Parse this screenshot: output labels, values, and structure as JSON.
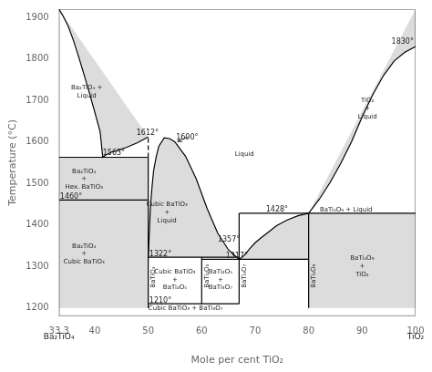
{
  "chart_data": {
    "type": "line",
    "xlabel": "Mole per cent TiO₂",
    "ylabel": "Temperature (°C)",
    "xlim": [
      33.3,
      100
    ],
    "ylim": [
      1180,
      1920
    ],
    "xticks": [
      33.3,
      40,
      50,
      60,
      70,
      80,
      90,
      100
    ],
    "yticks": [
      1200,
      1300,
      1400,
      1500,
      1600,
      1700,
      1800,
      1900
    ],
    "grid": false,
    "series": [
      {
        "type": "area",
        "color": "#c0c0c0",
        "x": [
          33.3,
          33.3,
          34,
          35,
          36,
          37,
          38,
          39,
          40,
          41,
          41.5,
          42,
          43,
          44,
          46,
          48,
          50,
          33.3
        ],
        "values": [
          1920,
          1920,
          1905,
          1880,
          1845,
          1805,
          1762,
          1718,
          1672,
          1625,
          1563,
          1568,
          1575,
          1578,
          1587,
          1598,
          1612,
          1920
        ]
      },
      {
        "type": "area",
        "color": "#c0c0c0",
        "x": [
          50,
          50.2,
          50.4,
          50.7,
          51,
          51.5,
          52,
          53,
          54,
          55,
          57,
          59,
          61,
          63,
          65,
          67,
          67,
          50
        ],
        "values": [
          1322,
          1380,
          1440,
          1490,
          1530,
          1565,
          1590,
          1610,
          1608,
          1600,
          1565,
          1510,
          1440,
          1380,
          1340,
          1317,
          1322,
          1322
        ]
      },
      {
        "type": "area",
        "color": "#c0c0c0",
        "x": [
          67,
          68,
          69,
          70,
          71,
          72,
          74,
          76,
          78,
          80,
          80,
          67
        ],
        "values": [
          1317,
          1327,
          1343,
          1357,
          1368,
          1378,
          1398,
          1412,
          1422,
          1428,
          1317,
          1317
        ]
      },
      {
        "type": "area",
        "color": "#c0c0c0",
        "x": [
          80,
          82,
          84,
          86,
          88,
          90,
          92,
          94,
          96,
          98,
          100,
          100
        ],
        "values": [
          1428,
          1462,
          1502,
          1548,
          1600,
          1660,
          1714,
          1760,
          1795,
          1816,
          1830,
          1920
        ]
      },
      {
        "type": "area",
        "color": "#c0c0c0",
        "x": [
          33.3,
          50,
          50,
          33.3
        ],
        "values": [
          1460,
          1460,
          1563,
          1563
        ]
      },
      {
        "type": "area",
        "color": "#c0c0c0",
        "x": [
          33.3,
          50,
          50,
          33.3
        ],
        "values": [
          1200,
          1200,
          1460,
          1460
        ]
      },
      {
        "type": "area",
        "color": "#c0c0c0",
        "x": [
          80,
          100,
          100,
          80
        ],
        "values": [
          1200,
          1200,
          1428,
          1428
        ]
      },
      {
        "color": "#000000",
        "x": [
          33.3,
          34,
          35,
          36,
          37,
          38,
          39,
          40,
          41,
          41.5,
          42,
          43,
          44,
          46,
          48,
          50
        ],
        "values": [
          1920,
          1905,
          1880,
          1845,
          1805,
          1762,
          1718,
          1672,
          1625,
          1563,
          1568,
          1575,
          1578,
          1587,
          1598,
          1612
        ]
      },
      {
        "color": "#000000",
        "x": [
          50,
          50.2,
          50.4,
          50.7,
          51,
          51.5,
          52,
          53,
          54,
          55,
          57,
          59,
          61,
          63,
          65,
          67
        ],
        "values": [
          1322,
          1380,
          1440,
          1490,
          1530,
          1565,
          1590,
          1610,
          1608,
          1600,
          1565,
          1510,
          1440,
          1380,
          1340,
          1317
        ]
      },
      {
        "color": "#000000",
        "x": [
          67,
          68,
          69,
          70,
          71,
          72,
          74,
          76,
          78,
          80
        ],
        "values": [
          1317,
          1327,
          1343,
          1357,
          1368,
          1378,
          1398,
          1412,
          1422,
          1428
        ]
      },
      {
        "color": "#000000",
        "x": [
          80,
          82,
          84,
          86,
          88,
          90,
          92,
          94,
          96,
          98,
          100
        ],
        "values": [
          1428,
          1462,
          1502,
          1548,
          1600,
          1660,
          1714,
          1760,
          1795,
          1816,
          1830
        ]
      },
      {
        "color": "#000000",
        "x": [
          33.3,
          50
        ],
        "values": [
          1563,
          1563
        ]
      },
      {
        "color": "#000000",
        "x": [
          33.3,
          50
        ],
        "values": [
          1460,
          1460
        ]
      },
      {
        "color": "#000000",
        "x": [
          50,
          67
        ],
        "values": [
          1322,
          1322
        ]
      },
      {
        "color": "#000000",
        "x": [
          50,
          67
        ],
        "values": [
          1210,
          1210
        ]
      },
      {
        "color": "#000000",
        "x": [
          60,
          80
        ],
        "values": [
          1317,
          1317
        ]
      },
      {
        "color": "#000000",
        "x": [
          67,
          100
        ],
        "values": [
          1428,
          1428
        ]
      },
      {
        "color": "#000000",
        "x": [
          50,
          50
        ],
        "values": [
          1200,
          1563
        ]
      },
      {
        "color": "#000000",
        "line_style": "dashed",
        "x": [
          50,
          50
        ],
        "values": [
          1563,
          1612
        ]
      },
      {
        "color": "#000000",
        "x": [
          60,
          60
        ],
        "values": [
          1210,
          1322
        ]
      },
      {
        "color": "#000000",
        "x": [
          67,
          67
        ],
        "values": [
          1210,
          1428
        ]
      },
      {
        "color": "#000000",
        "x": [
          80,
          80
        ],
        "values": [
          1200,
          1428
        ]
      }
    ],
    "phase_labels": [
      {
        "text": "Ba₂TiO₄ +\nLiquid",
        "x": 38.5,
        "y": 1720
      },
      {
        "text": "Ba₂TiO₄\n+\nHex. BaTiO₃",
        "x": 38,
        "y": 1510
      },
      {
        "text": "Ba₂TiO₄\n+\nCubic BaTiO₃",
        "x": 38,
        "y": 1330
      },
      {
        "text": "Cubic BaTiO₃\n+\nLiquid",
        "x": 53.5,
        "y": 1430
      },
      {
        "text": "Liquid",
        "x": 68,
        "y": 1570
      },
      {
        "text": "TiO₂\n+\nLiquid",
        "x": 91,
        "y": 1680
      },
      {
        "text": "BaTi₄O₉ + Liquid",
        "x": 87,
        "y": 1436
      },
      {
        "text": "Cubic BaTiO₃\n+\nBaTi₂O₅",
        "x": 55,
        "y": 1268
      },
      {
        "text": "BaTi₂O₅\n+\nBaTi₃O₇",
        "x": 63.5,
        "y": 1268
      },
      {
        "text": "BaTi₄O₉\n+\nTiO₂",
        "x": 90,
        "y": 1300
      },
      {
        "text": "Cubic BaTiO₃ + BaTi₃O₇",
        "x": 57,
        "y": 1200
      }
    ],
    "vertical_labels": [
      {
        "text": "BaTiO₃",
        "x": 50.4,
        "y": 1248
      },
      {
        "text": "BaTi₂O₅",
        "x": 60.4,
        "y": 1248
      },
      {
        "text": "BaTi₃O₇",
        "x": 67.4,
        "y": 1248
      },
      {
        "text": "BaTi₄O₉",
        "x": 80.4,
        "y": 1248
      }
    ],
    "temp_labels": [
      {
        "text": "1563°",
        "x": 41.5,
        "y": 1572
      },
      {
        "text": "1460°",
        "x": 33.5,
        "y": 1468
      },
      {
        "text": "1612°",
        "x": 47.8,
        "y": 1622
      },
      {
        "text": "1600°",
        "x": 55.2,
        "y": 1610
      },
      {
        "text": "1322°",
        "x": 50.2,
        "y": 1330
      },
      {
        "text": "1210°",
        "x": 50.2,
        "y": 1218
      },
      {
        "text": "1317°",
        "x": 64.5,
        "y": 1325
      },
      {
        "text": "1357°",
        "x": 63,
        "y": 1365
      },
      {
        "text": "1428°",
        "x": 72,
        "y": 1436
      },
      {
        "text": "1830°",
        "x": 95.5,
        "y": 1840
      }
    ],
    "arrows": [
      {
        "x": 57.5,
        "y": 1612,
        "to_x": 55.5,
        "to_y": 1601
      }
    ],
    "bottom_labels": [
      {
        "text": "Ba₂TiO₄",
        "x": 33.3
      },
      {
        "text": "TiO₂",
        "x": 100
      }
    ]
  }
}
